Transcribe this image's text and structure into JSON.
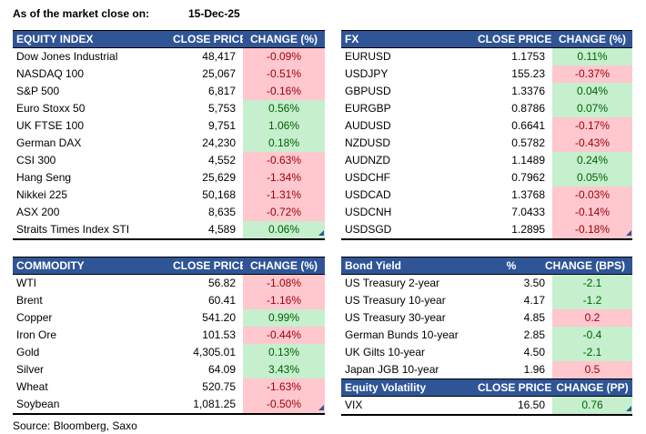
{
  "meta": {
    "as_of_label": "As of the market close on:",
    "date": "15-Dec-25",
    "source": "Source: Bloomberg, Saxo"
  },
  "colors": {
    "header_bg": "#2F5597",
    "header_text": "#FFFFFF",
    "positive_bg": "#C6EFCE",
    "positive_text": "#006100",
    "negative_bg": "#FFC7CE",
    "negative_text": "#9C0006"
  },
  "tables": {
    "equity_index": {
      "headers": {
        "name": "EQUITY INDEX",
        "value": "CLOSE PRICE",
        "change": "CHANGE (%)"
      },
      "rows": [
        {
          "name": "Dow Jones Industrial",
          "value": "48,417",
          "change": "-0.09%",
          "tone": "red"
        },
        {
          "name": "NASDAQ 100",
          "value": "25,067",
          "change": "-0.51%",
          "tone": "red"
        },
        {
          "name": "S&P 500",
          "value": "6,817",
          "change": "-0.16%",
          "tone": "red"
        },
        {
          "name": "Euro Stoxx 50",
          "value": "5,753",
          "change": "0.56%",
          "tone": "green"
        },
        {
          "name": "UK FTSE 100",
          "value": "9,751",
          "change": "1.06%",
          "tone": "green"
        },
        {
          "name": "German DAX",
          "value": "24,230",
          "change": "0.18%",
          "tone": "green"
        },
        {
          "name": "CSI 300",
          "value": "4,552",
          "change": "-0.63%",
          "tone": "red"
        },
        {
          "name": "Hang Seng",
          "value": "25,629",
          "change": "-1.34%",
          "tone": "red"
        },
        {
          "name": "Nikkei 225",
          "value": "50,168",
          "change": "-1.31%",
          "tone": "red"
        },
        {
          "name": "ASX 200",
          "value": "8,635",
          "change": "-0.72%",
          "tone": "red"
        },
        {
          "name": "Straits Times Index STI",
          "value": "4,589",
          "change": "0.06%",
          "tone": "green"
        }
      ]
    },
    "fx": {
      "headers": {
        "name": "FX",
        "value": "CLOSE PRICE",
        "change": "CHANGE (%)"
      },
      "rows": [
        {
          "name": "EURUSD",
          "value": "1.1753",
          "change": "0.11%",
          "tone": "green"
        },
        {
          "name": "USDJPY",
          "value": "155.23",
          "change": "-0.37%",
          "tone": "red"
        },
        {
          "name": "GBPUSD",
          "value": "1.3376",
          "change": "0.04%",
          "tone": "green"
        },
        {
          "name": "EURGBP",
          "value": "0.8786",
          "change": "0.07%",
          "tone": "green"
        },
        {
          "name": "AUDUSD",
          "value": "0.6641",
          "change": "-0.17%",
          "tone": "red"
        },
        {
          "name": "NZDUSD",
          "value": "0.5782",
          "change": "-0.43%",
          "tone": "red"
        },
        {
          "name": "AUDNZD",
          "value": "1.1489",
          "change": "0.24%",
          "tone": "green"
        },
        {
          "name": "USDCHF",
          "value": "0.7962",
          "change": "0.05%",
          "tone": "green"
        },
        {
          "name": "USDCAD",
          "value": "1.3768",
          "change": "-0.03%",
          "tone": "red"
        },
        {
          "name": "USDCNH",
          "value": "7.0433",
          "change": "-0.14%",
          "tone": "red"
        },
        {
          "name": "USDSGD",
          "value": "1.2895",
          "change": "-0.18%",
          "tone": "red"
        }
      ]
    },
    "commodity": {
      "headers": {
        "name": "COMMODITY",
        "value": "CLOSE PRICE",
        "change": "CHANGE (%)"
      },
      "rows": [
        {
          "name": "WTI",
          "value": "56.82",
          "change": "-1.08%",
          "tone": "red"
        },
        {
          "name": "Brent",
          "value": "60.41",
          "change": "-1.16%",
          "tone": "red"
        },
        {
          "name": "Copper",
          "value": "541.20",
          "change": "0.99%",
          "tone": "green"
        },
        {
          "name": "Iron Ore",
          "value": "101.53",
          "change": "-0.44%",
          "tone": "red"
        },
        {
          "name": "Gold",
          "value": "4,305.01",
          "change": "0.13%",
          "tone": "green"
        },
        {
          "name": "Silver",
          "value": "64.09",
          "change": "3.43%",
          "tone": "green"
        },
        {
          "name": "Wheat",
          "value": "520.75",
          "change": "-1.63%",
          "tone": "red"
        },
        {
          "name": "Soybean",
          "value": "1,081.25",
          "change": "-0.50%",
          "tone": "red"
        }
      ]
    },
    "bond_yield": {
      "headers": {
        "name": "Bond Yield",
        "value": "%",
        "change": "CHANGE (BPS)"
      },
      "rows": [
        {
          "name": "US Treasury 2-year",
          "value": "3.50",
          "change": "-2.1",
          "tone": "green"
        },
        {
          "name": "US Treasury 10-year",
          "value": "4.17",
          "change": "-1.2",
          "tone": "green"
        },
        {
          "name": "US Treasury 30-year",
          "value": "4.85",
          "change": "0.2",
          "tone": "red"
        },
        {
          "name": "German Bunds 10-year",
          "value": "2.85",
          "change": "-0.4",
          "tone": "green"
        },
        {
          "name": "UK Gilts 10-year",
          "value": "4.50",
          "change": "-2.1",
          "tone": "green"
        },
        {
          "name": "Japan JGB 10-year",
          "value": "1.96",
          "change": "0.5",
          "tone": "red"
        }
      ]
    },
    "equity_volatility": {
      "headers": {
        "name": "Equity Volatility",
        "value": "CLOSE PRICE",
        "change": "CHANGE (PP)"
      },
      "rows": [
        {
          "name": "VIX",
          "value": "16.50",
          "change": "0.76",
          "tone": "green"
        }
      ]
    }
  }
}
